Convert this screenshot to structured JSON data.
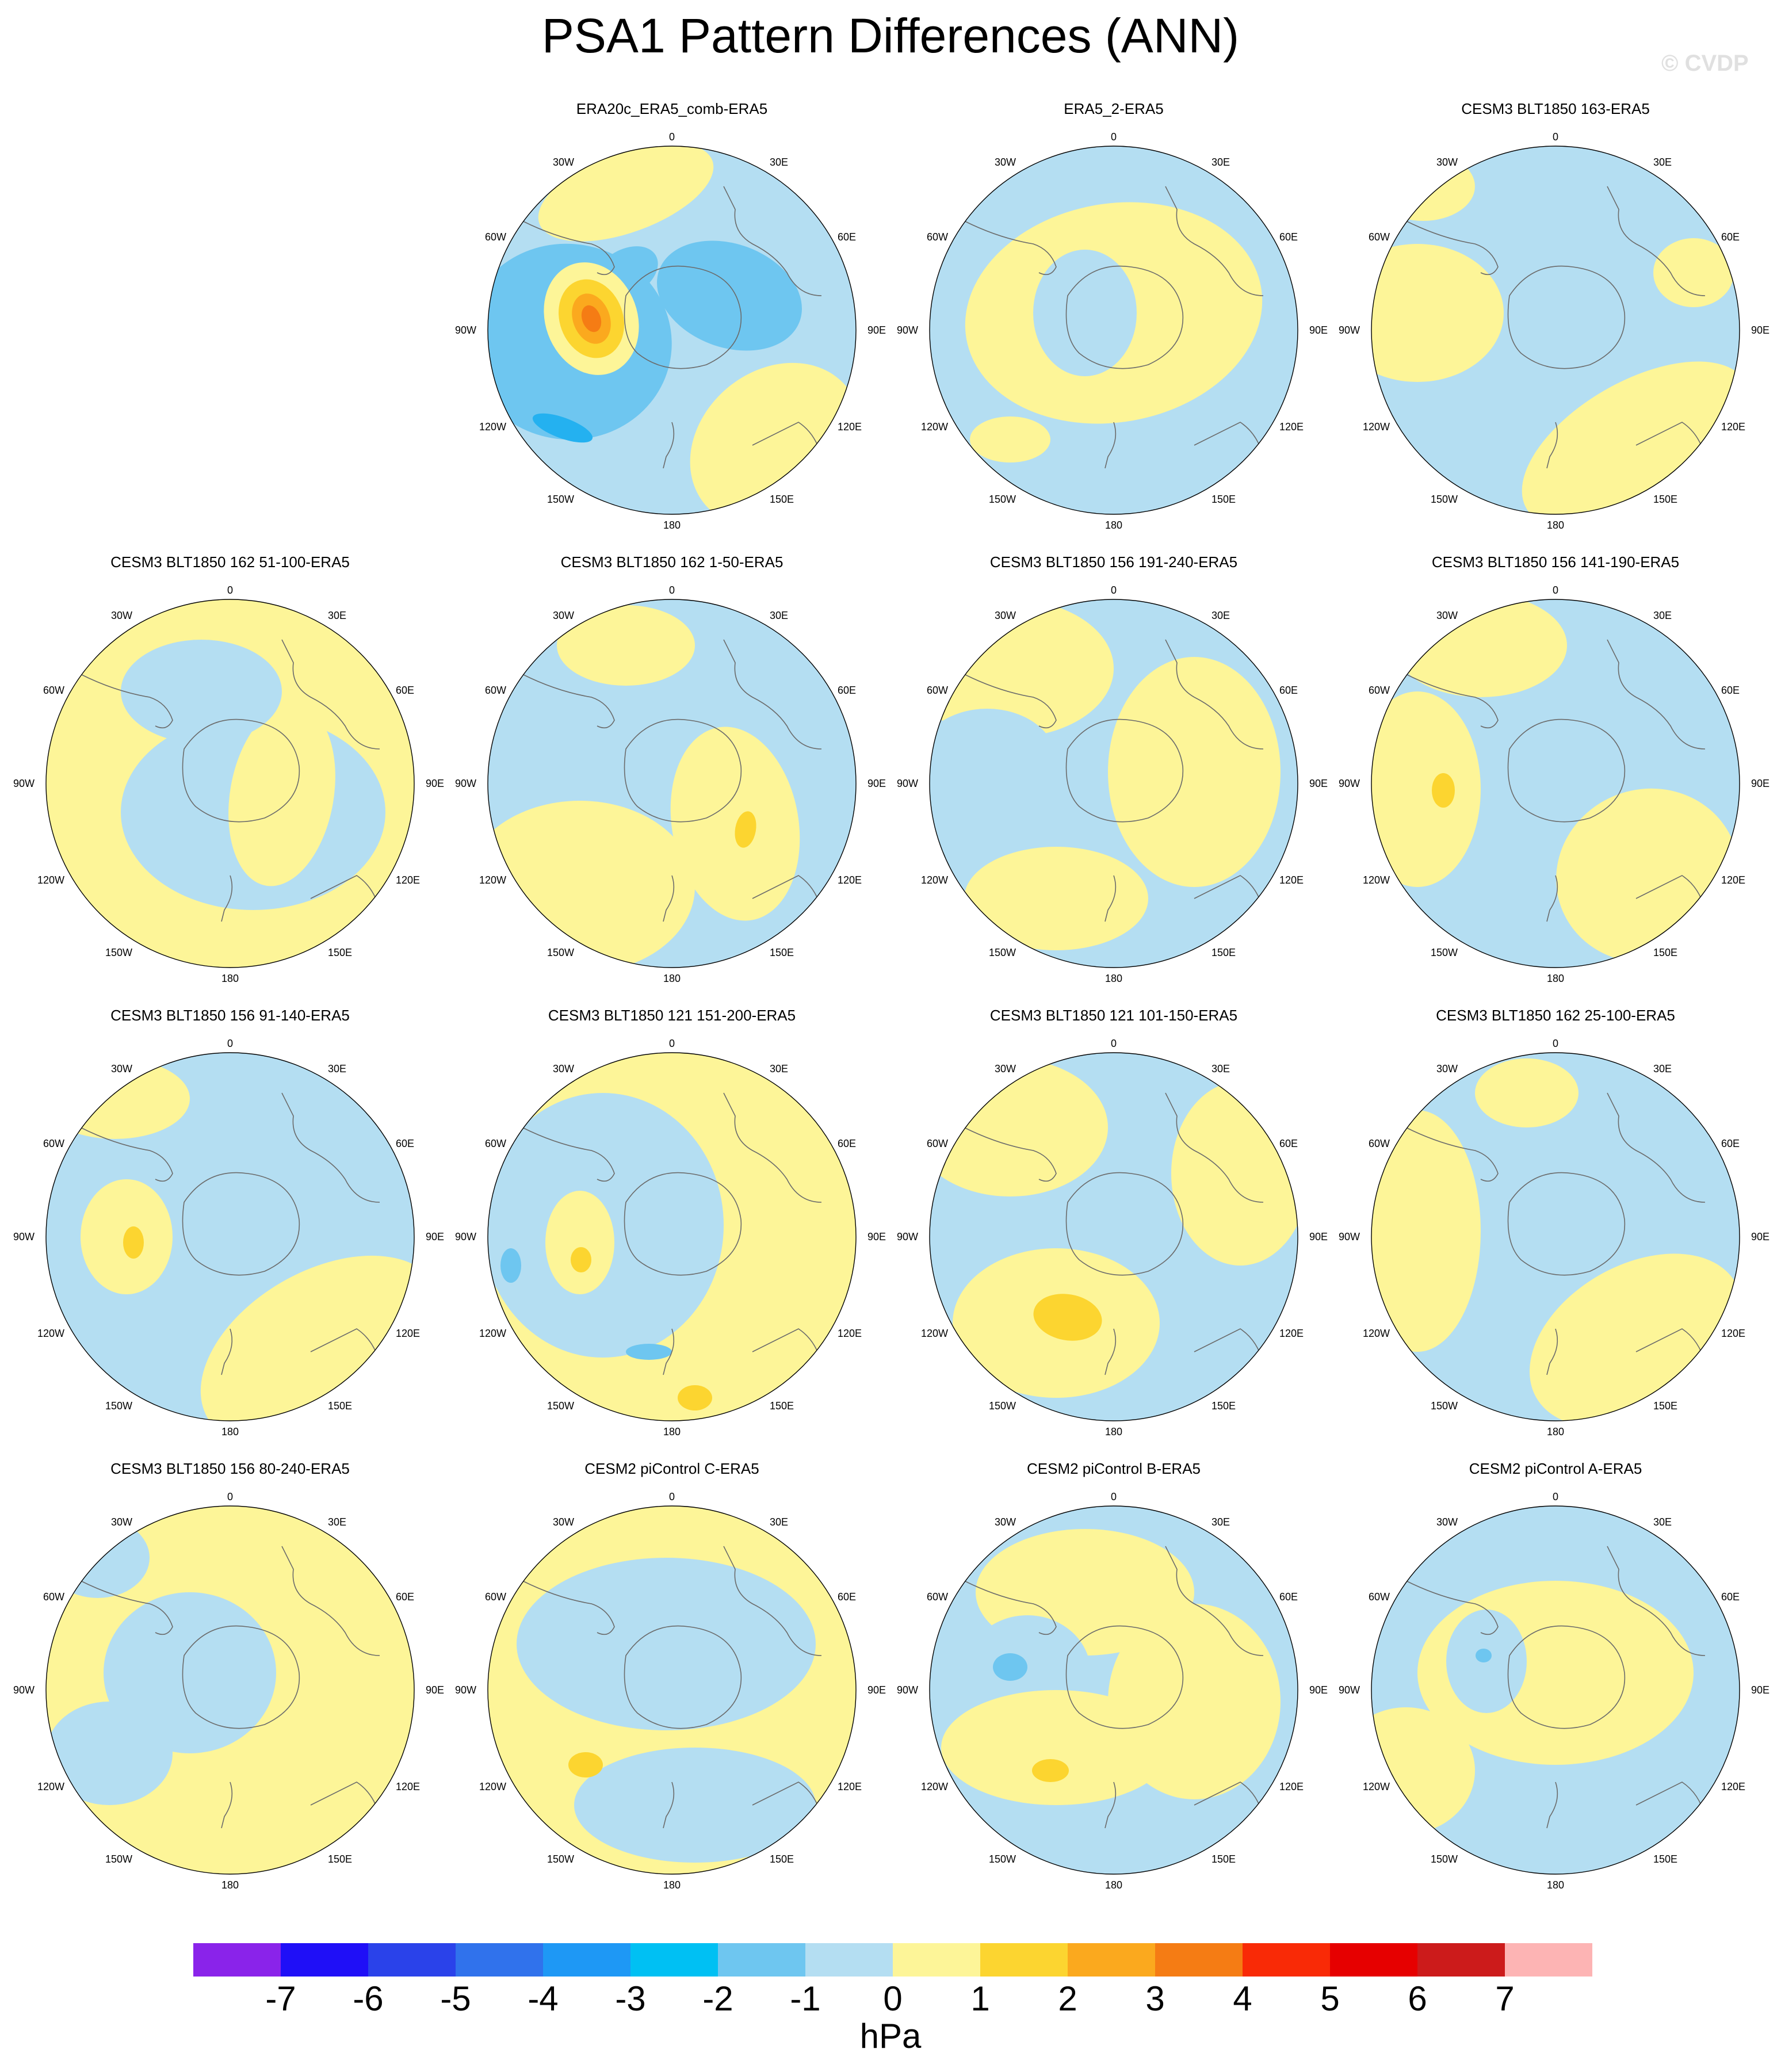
{
  "title": "PSA1 Pattern Differences (ANN)",
  "watermark": "© CVDP",
  "units": "hPa",
  "colors": {
    "pos1": "#fdf598",
    "neg1": "#b4def2",
    "pos2": "#fcd530",
    "neg2": "#6ec6f0",
    "pos3": "#fba91e",
    "pos4": "#f57c14",
    "neg3": "#24b1f0",
    "coast": "#6b6b6b"
  },
  "map_labels": {
    "top": "0",
    "bottom": "180",
    "left": "90W",
    "right": "90E",
    "upper_left_1": "30W",
    "upper_left_2": "60W",
    "upper_right_1": "30E",
    "upper_right_2": "60E",
    "lower_left_1": "120W",
    "lower_left_2": "150W",
    "lower_right_1": "120E",
    "lower_right_2": "150E"
  },
  "panels": [
    {
      "title": "ERA20c_ERA5_comb-ERA5"
    },
    {
      "title": "ERA5_2-ERA5"
    },
    {
      "title": "CESM3 BLT1850 163-ERA5"
    },
    {
      "title": "CESM3 BLT1850 162 51-100-ERA5"
    },
    {
      "title": "CESM3 BLT1850 162 1-50-ERA5"
    },
    {
      "title": "CESM3 BLT1850 156 191-240-ERA5"
    },
    {
      "title": "CESM3 BLT1850 156 141-190-ERA5"
    },
    {
      "title": "CESM3 BLT1850 156 91-140-ERA5"
    },
    {
      "title": "CESM3 BLT1850 121 151-200-ERA5"
    },
    {
      "title": "CESM3 BLT1850 121 101-150-ERA5"
    },
    {
      "title": "CESM3 BLT1850 162 25-100-ERA5"
    },
    {
      "title": "CESM3 BLT1850 156 80-240-ERA5"
    },
    {
      "title": "CESM2 piControl C-ERA5"
    },
    {
      "title": "CESM2 piControl B-ERA5"
    },
    {
      "title": "CESM2 piControl A-ERA5"
    }
  ],
  "colorbar": {
    "colors": [
      "#8a23ea",
      "#1f0ff7",
      "#2a42ea",
      "#3072ec",
      "#1e98f5",
      "#00c0f3",
      "#6ec6f0",
      "#b4def2",
      "#fdf598",
      "#fcd530",
      "#fba91e",
      "#f57c14",
      "#f92a06",
      "#e60000",
      "#cc1b1b",
      "#fdb4b4"
    ],
    "labels": [
      "-7",
      "-6",
      "-5",
      "-4",
      "-3",
      "-2",
      "-1",
      "0",
      "1",
      "2",
      "3",
      "4",
      "5",
      "6",
      "7"
    ]
  }
}
